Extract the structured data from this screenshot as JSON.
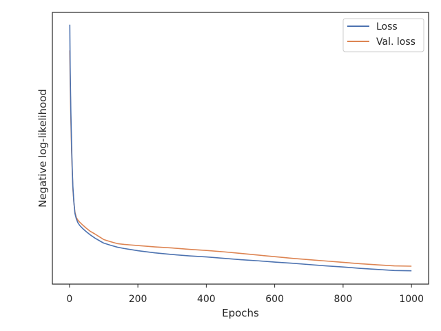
{
  "chart_data": {
    "type": "line",
    "xlabel": "Epochs",
    "ylabel": "Negative log-likelihood",
    "xlim": [
      -50,
      1050
    ],
    "xticks": [
      0,
      200,
      400,
      600,
      800,
      1000
    ],
    "y_tick_labels_shown": false,
    "ylim": [
      0,
      100
    ],
    "grid": false,
    "legend_placement": "top-right",
    "series": [
      {
        "name": "Loss",
        "color": "#4c72b0",
        "x": [
          1,
          2,
          4,
          6,
          8,
          10,
          13,
          16,
          20,
          25,
          30,
          40,
          50,
          60,
          75,
          90,
          100,
          120,
          140,
          160,
          180,
          200,
          250,
          300,
          350,
          400,
          450,
          500,
          550,
          600,
          650,
          700,
          750,
          800,
          850,
          900,
          950,
          1000
        ],
        "values": [
          95.5,
          80,
          64,
          52,
          43,
          36,
          30,
          26,
          24,
          22.5,
          21.6,
          20.3,
          19.2,
          18.2,
          16.9,
          15.8,
          15.1,
          14.3,
          13.6,
          13.1,
          12.7,
          12.3,
          11.5,
          10.9,
          10.4,
          10.0,
          9.5,
          9.0,
          8.6,
          8.1,
          7.7,
          7.2,
          6.7,
          6.3,
          5.8,
          5.4,
          5.0,
          4.9
        ]
      },
      {
        "name": "Val. loss",
        "color": "#dd8452",
        "x": [
          1,
          2,
          4,
          6,
          8,
          10,
          13,
          16,
          20,
          25,
          30,
          40,
          50,
          60,
          75,
          90,
          100,
          120,
          140,
          160,
          180,
          200,
          250,
          300,
          350,
          400,
          450,
          500,
          550,
          600,
          650,
          700,
          750,
          800,
          850,
          900,
          950,
          1000
        ],
        "values": [
          86,
          75,
          61,
          50,
          42,
          35,
          30,
          26.5,
          24.5,
          23.5,
          22.8,
          21.6,
          20.5,
          19.5,
          18.4,
          17.2,
          16.4,
          15.6,
          14.9,
          14.6,
          14.4,
          14.2,
          13.7,
          13.3,
          12.8,
          12.4,
          11.9,
          11.3,
          10.7,
          10.1,
          9.5,
          9.0,
          8.5,
          8.0,
          7.5,
          7.1,
          6.7,
          6.6
        ]
      }
    ]
  }
}
